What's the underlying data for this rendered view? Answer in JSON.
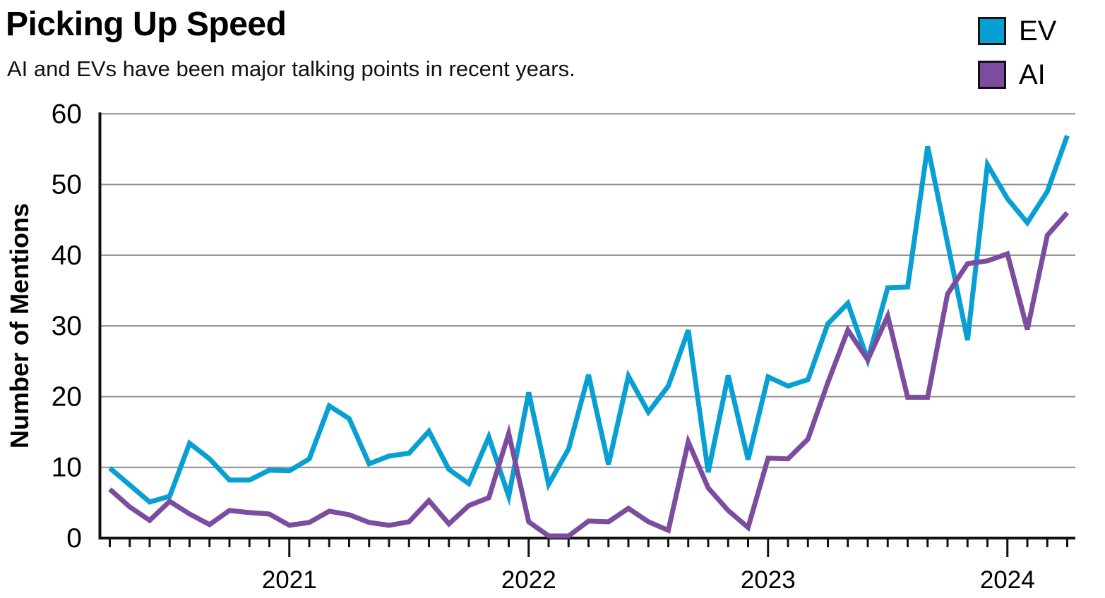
{
  "header": {
    "title": "Picking Up Speed",
    "subtitle": "AI and EVs have been major talking points in recent years."
  },
  "legend": {
    "items": [
      {
        "label": "EV",
        "color": "#089FD3"
      },
      {
        "label": "AI",
        "color": "#7C4C9E"
      }
    ]
  },
  "chart_data": {
    "type": "line",
    "title": "Picking Up Speed",
    "subtitle": "AI and EVs have been major talking points in recent years.",
    "ylabel": "Number of Mentions",
    "ylim": [
      0,
      60
    ],
    "y_ticks": [
      0,
      10,
      20,
      30,
      40,
      50,
      60
    ],
    "x_tick_years": [
      "2021",
      "2022",
      "2023",
      "2024"
    ],
    "grid": "horizontal-only",
    "legend_position": "top-right",
    "x_unit": "month",
    "x": [
      "2020-04",
      "2020-05",
      "2020-06",
      "2020-07",
      "2020-08",
      "2020-09",
      "2020-10",
      "2020-11",
      "2020-12",
      "2021-01",
      "2021-02",
      "2021-03",
      "2021-04",
      "2021-05",
      "2021-06",
      "2021-07",
      "2021-08",
      "2021-09",
      "2021-10",
      "2021-11",
      "2021-12",
      "2022-01",
      "2022-02",
      "2022-03",
      "2022-04",
      "2022-05",
      "2022-06",
      "2022-07",
      "2022-08",
      "2022-09",
      "2022-10",
      "2022-11",
      "2022-12",
      "2023-01",
      "2023-02",
      "2023-03",
      "2023-04",
      "2023-05",
      "2023-06",
      "2023-07",
      "2023-08",
      "2023-09",
      "2023-10",
      "2023-11",
      "2023-12",
      "2024-01",
      "2024-02",
      "2024-03",
      "2024-04"
    ],
    "series": [
      {
        "name": "EV",
        "color": "#089FD3",
        "values": [
          9.9,
          7.5,
          5.1,
          5.9,
          13.4,
          11.2,
          8.2,
          8.2,
          9.6,
          9.5,
          11.2,
          18.7,
          16.9,
          10.5,
          11.6,
          12.0,
          15.1,
          9.7,
          7.7,
          14.3,
          5.9,
          20.6,
          7.6,
          12.6,
          23.1,
          10.4,
          22.9,
          17.8,
          21.5,
          29.4,
          9.3,
          23.0,
          11.1,
          22.8,
          21.5,
          22.4,
          30.3,
          33.2,
          25.2,
          35.4,
          35.5,
          55.4,
          41.7,
          28.0,
          52.8,
          48.0,
          44.6,
          49.0,
          56.9
        ]
      },
      {
        "name": "AI",
        "color": "#7C4C9E",
        "values": [
          6.9,
          4.4,
          2.5,
          5.2,
          3.4,
          1.9,
          3.9,
          3.6,
          3.4,
          1.8,
          2.2,
          3.8,
          3.3,
          2.2,
          1.8,
          2.3,
          5.3,
          2.0,
          4.6,
          5.7,
          14.8,
          2.3,
          0.3,
          0.3,
          2.4,
          2.3,
          4.2,
          2.3,
          1.1,
          13.6,
          7.1,
          3.9,
          1.5,
          11.3,
          11.2,
          14.0,
          22.0,
          29.4,
          25.2,
          31.4,
          19.9,
          19.9,
          34.5,
          38.8,
          39.2,
          40.2,
          29.5,
          42.8,
          46.0
        ]
      }
    ]
  }
}
